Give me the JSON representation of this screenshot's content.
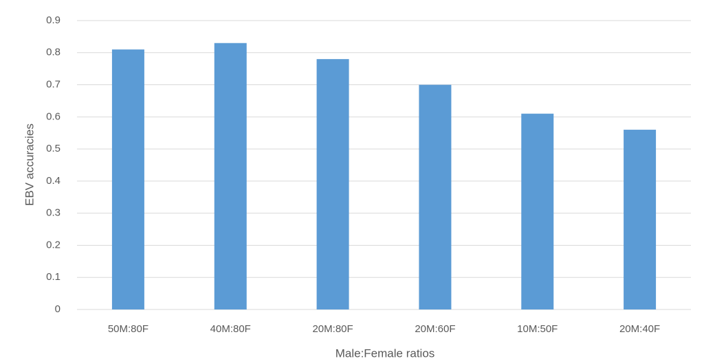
{
  "chart_data": {
    "type": "bar",
    "x_label": "Male:Female ratios",
    "y_label": "EBV accuracies",
    "categories": [
      "50M:80F",
      "40M:80F",
      "20M:80F",
      "20M:60F",
      "10M:50F",
      "20M:40F"
    ],
    "values": [
      0.81,
      0.83,
      0.78,
      0.7,
      0.61,
      0.56
    ],
    "color": "#5b9bd5",
    "ylim": [
      0,
      0.9
    ],
    "yticks": [
      0,
      0.1,
      0.2,
      0.3,
      0.4,
      0.5,
      0.6,
      0.7,
      0.8,
      0.9
    ],
    "grid": true
  }
}
